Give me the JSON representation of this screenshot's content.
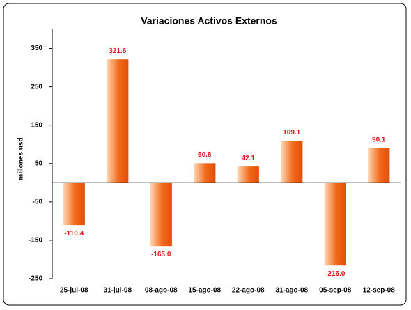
{
  "chart_data": {
    "type": "bar",
    "title": "Variaciones Activos Externos",
    "y_label": "millones usd",
    "categories": [
      "25-jul-08",
      "31-jul-08",
      "08-ago-08",
      "15-ago-08",
      "22-ago-08",
      "31-ago-08",
      "05-sep-08",
      "12-sep-08"
    ],
    "values": [
      -110.4,
      321.6,
      -165,
      50.8,
      42.1,
      109.1,
      -216,
      90.1
    ],
    "value_labels": [
      "-110.4",
      "321.6",
      "-165.0",
      "50.8",
      "42.1",
      "109.1",
      "-216.0",
      "90.1"
    ],
    "color": "#f26a1b",
    "label_color": "#e8141e",
    "ylim": [
      -250,
      400
    ],
    "yticks": [
      -250,
      -150,
      -50,
      50,
      150,
      250,
      350
    ],
    "grid": false
  }
}
